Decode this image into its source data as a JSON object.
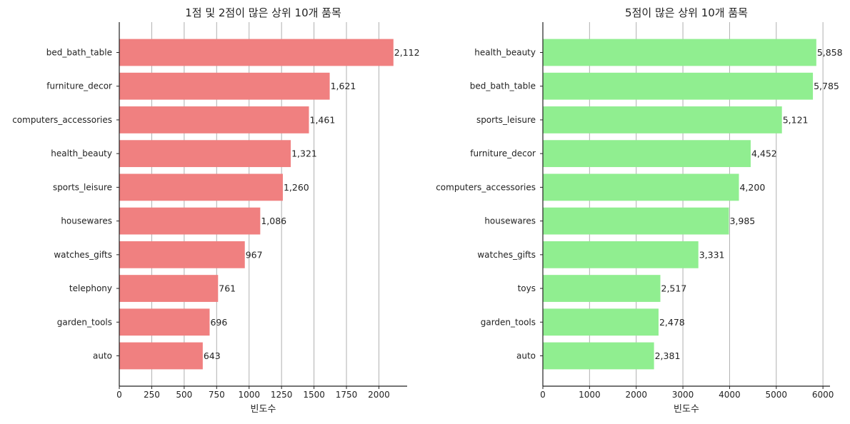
{
  "chart_data": [
    {
      "type": "bar",
      "orientation": "horizontal",
      "title": "1점 및 2점이 많은 상위 10개 품목",
      "xlabel": "빈도수",
      "ylabel": "",
      "categories": [
        "bed_bath_table",
        "furniture_decor",
        "computers_accessories",
        "health_beauty",
        "sports_leisure",
        "housewares",
        "watches_gifts",
        "telephony",
        "garden_tools",
        "auto"
      ],
      "values": [
        2112,
        1621,
        1461,
        1321,
        1260,
        1086,
        967,
        761,
        696,
        643
      ],
      "data_labels": [
        "2,112",
        "1,621",
        "1,461",
        "1,321",
        "1,260",
        "1,086",
        "967",
        "761",
        "696",
        "643"
      ],
      "xlim": [
        0,
        2217.6
      ],
      "xticks": [
        0,
        250,
        500,
        750,
        1000,
        1250,
        1500,
        1750,
        2000
      ],
      "xtick_labels": [
        "0",
        "250",
        "500",
        "750",
        "1000",
        "1250",
        "1500",
        "1750",
        "2000"
      ],
      "grid": "vertical",
      "color": "#f08080"
    },
    {
      "type": "bar",
      "orientation": "horizontal",
      "title": "5점이 많은 상위 10개 품목",
      "xlabel": "빈도수",
      "ylabel": "",
      "categories": [
        "health_beauty",
        "bed_bath_table",
        "sports_leisure",
        "furniture_decor",
        "computers_accessories",
        "housewares",
        "watches_gifts",
        "toys",
        "garden_tools",
        "auto"
      ],
      "values": [
        5858,
        5785,
        5121,
        4452,
        4200,
        3985,
        3331,
        2517,
        2478,
        2381
      ],
      "data_labels": [
        "5,858",
        "5,785",
        "5,121",
        "4,452",
        "4,200",
        "3,985",
        "3,331",
        "2,517",
        "2,478",
        "2,381"
      ],
      "xlim": [
        0,
        6150.9
      ],
      "xticks": [
        0,
        1000,
        2000,
        3000,
        4000,
        5000,
        6000
      ],
      "xtick_labels": [
        "0",
        "1000",
        "2000",
        "3000",
        "4000",
        "5000",
        "6000"
      ],
      "grid": "vertical",
      "color": "#90ee90"
    }
  ]
}
